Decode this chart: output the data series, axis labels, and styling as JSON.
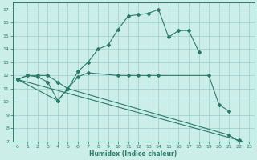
{
  "title": "",
  "xlabel": "Humidex (Indice chaleur)",
  "bg_color": "#cceee8",
  "line_color": "#2a7a6a",
  "grid_color": "#99cccc",
  "xlim": [
    -0.5,
    23.5
  ],
  "ylim": [
    7,
    17.5
  ],
  "xticks": [
    0,
    1,
    2,
    3,
    4,
    5,
    6,
    7,
    8,
    9,
    10,
    11,
    12,
    13,
    14,
    15,
    16,
    17,
    18,
    19,
    20,
    21,
    22,
    23
  ],
  "yticks": [
    7,
    8,
    9,
    10,
    11,
    12,
    13,
    14,
    15,
    16,
    17
  ],
  "line1_x": [
    0,
    1,
    2,
    3,
    4,
    5,
    6,
    7,
    8,
    9,
    10,
    11,
    12,
    13,
    14,
    15,
    16,
    17,
    18
  ],
  "line1_y": [
    11.7,
    12.0,
    12.0,
    12.0,
    11.5,
    11.0,
    12.3,
    13.0,
    14.0,
    14.3,
    15.5,
    16.5,
    16.6,
    16.7,
    17.0,
    14.9,
    15.4,
    15.4,
    13.8
  ],
  "line2_x": [
    0,
    1,
    2,
    3,
    4,
    5,
    6,
    7,
    10,
    11,
    12,
    13,
    14,
    19,
    20,
    21
  ],
  "line2_y": [
    11.7,
    12.0,
    11.9,
    11.5,
    10.1,
    11.0,
    11.9,
    12.2,
    12.0,
    12.0,
    12.0,
    12.0,
    12.0,
    12.0,
    9.8,
    9.3
  ],
  "line3_x": [
    0,
    4,
    5,
    21,
    22,
    23
  ],
  "line3_y": [
    11.7,
    10.1,
    11.0,
    7.5,
    7.0,
    6.8
  ],
  "line4_x": [
    0,
    22,
    23
  ],
  "line4_y": [
    11.7,
    7.1,
    6.8
  ]
}
